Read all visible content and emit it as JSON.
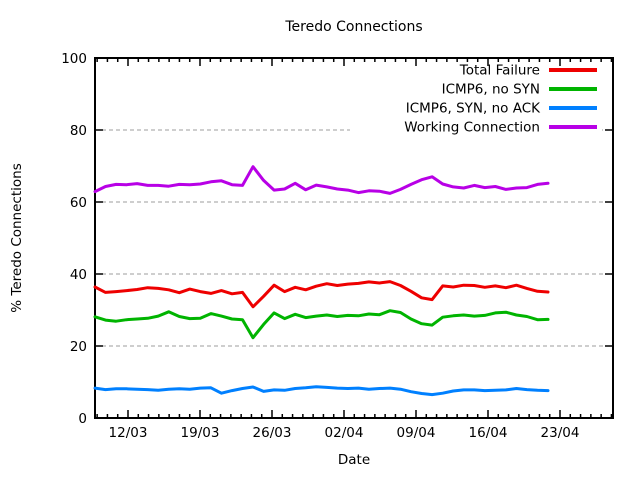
{
  "colors": {
    "background": "#ffffff",
    "axis": "#000000",
    "grid": "#9e9e9e",
    "total_failure": "#ee0000",
    "icmp6_no_syn": "#00b400",
    "icmp6_syn_no_ack": "#0080ff",
    "working_connection": "#b800e6"
  },
  "chart_data": {
    "type": "line",
    "title": "Teredo Connections",
    "xlabel": "Date",
    "ylabel": "% Teredo Connections",
    "ylim": [
      0,
      100
    ],
    "yticks": [
      0,
      20,
      40,
      60,
      80,
      100
    ],
    "xtick_labels": [
      "12/03",
      "19/03",
      "26/03",
      "02/04",
      "09/04",
      "16/04",
      "23/04"
    ],
    "xtick_days": [
      3,
      10,
      17,
      24,
      31,
      38,
      45
    ],
    "x_start_label": "09/03",
    "x_sampling": "daily",
    "grid": "horizontal-dashed",
    "legend_position": "top-right-inside-no-box",
    "series": [
      {
        "name": "Total Failure",
        "color": "#ee0000",
        "values": [
          36.4,
          34.9,
          35.1,
          35.4,
          35.7,
          36.2,
          36.0,
          35.6,
          34.8,
          35.8,
          35.1,
          34.6,
          35.4,
          34.5,
          34.9,
          30.9,
          33.8,
          36.9,
          35.1,
          36.3,
          35.6,
          36.6,
          37.3,
          36.8,
          37.2,
          37.4,
          37.8,
          37.5,
          37.9,
          36.8,
          35.2,
          33.4,
          32.9,
          36.7,
          36.4,
          36.9,
          36.8,
          36.3,
          36.7,
          36.2,
          36.9,
          36.0,
          35.2,
          35.0
        ]
      },
      {
        "name": "ICMP6, no SYN",
        "color": "#00b400",
        "values": [
          28.1,
          27.2,
          26.9,
          27.3,
          27.5,
          27.7,
          28.3,
          29.5,
          28.2,
          27.6,
          27.7,
          29.0,
          28.3,
          27.5,
          27.3,
          22.3,
          26.0,
          29.2,
          27.6,
          28.8,
          27.9,
          28.3,
          28.6,
          28.2,
          28.5,
          28.4,
          28.9,
          28.7,
          29.8,
          29.3,
          27.5,
          26.2,
          25.8,
          28.0,
          28.4,
          28.6,
          28.3,
          28.5,
          29.2,
          29.4,
          28.6,
          28.2,
          27.3,
          27.4
        ]
      },
      {
        "name": "ICMP6, SYN, no ACK",
        "color": "#0080ff",
        "values": [
          8.3,
          7.9,
          8.1,
          8.1,
          8.0,
          7.9,
          7.7,
          8.0,
          8.1,
          8.0,
          8.3,
          8.4,
          6.9,
          7.6,
          8.2,
          8.6,
          7.4,
          7.8,
          7.7,
          8.2,
          8.4,
          8.7,
          8.5,
          8.3,
          8.2,
          8.3,
          8.0,
          8.2,
          8.3,
          8.0,
          7.3,
          6.8,
          6.5,
          6.9,
          7.5,
          7.8,
          7.8,
          7.6,
          7.7,
          7.8,
          8.2,
          7.9,
          7.7,
          7.6
        ]
      },
      {
        "name": "Working Connection",
        "color": "#b800e6",
        "values": [
          62.9,
          64.3,
          64.9,
          64.8,
          65.1,
          64.6,
          64.6,
          64.4,
          64.9,
          64.8,
          65.0,
          65.6,
          65.9,
          64.8,
          64.6,
          69.8,
          66.0,
          63.3,
          63.6,
          65.2,
          63.4,
          64.7,
          64.2,
          63.6,
          63.3,
          62.6,
          63.1,
          63.0,
          62.4,
          63.5,
          64.9,
          66.2,
          67.0,
          65.0,
          64.2,
          63.9,
          64.6,
          64.0,
          64.3,
          63.5,
          63.9,
          64.0,
          64.9,
          65.2
        ]
      }
    ]
  }
}
